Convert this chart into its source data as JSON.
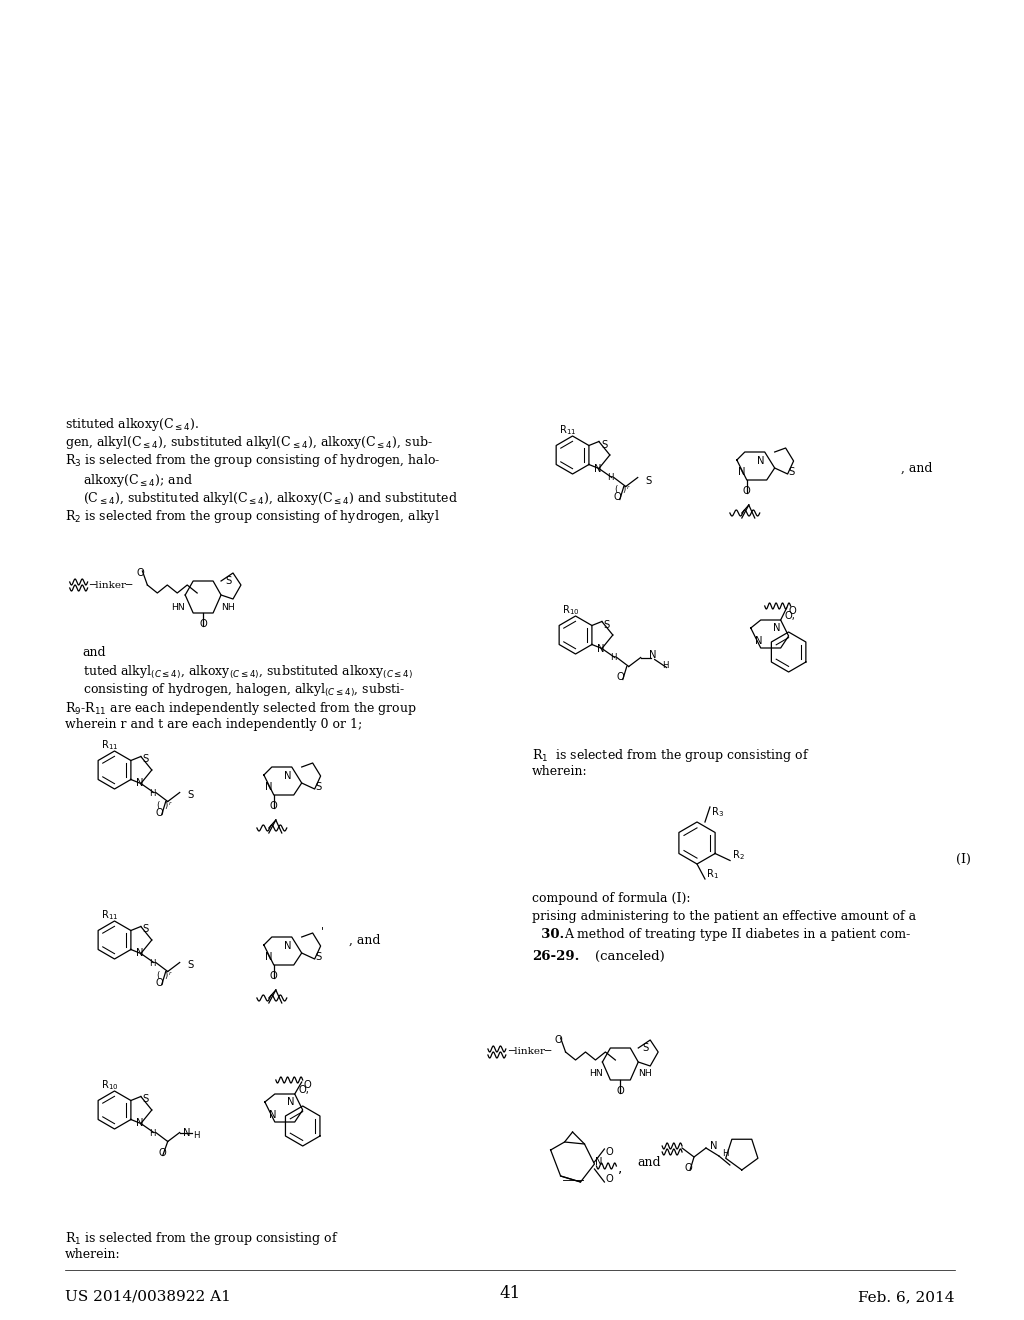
{
  "bg_color": "#ffffff",
  "header_left": "US 2014/0038922 A1",
  "header_right": "Feb. 6, 2014",
  "page_number": "41",
  "font_color": "#000000"
}
